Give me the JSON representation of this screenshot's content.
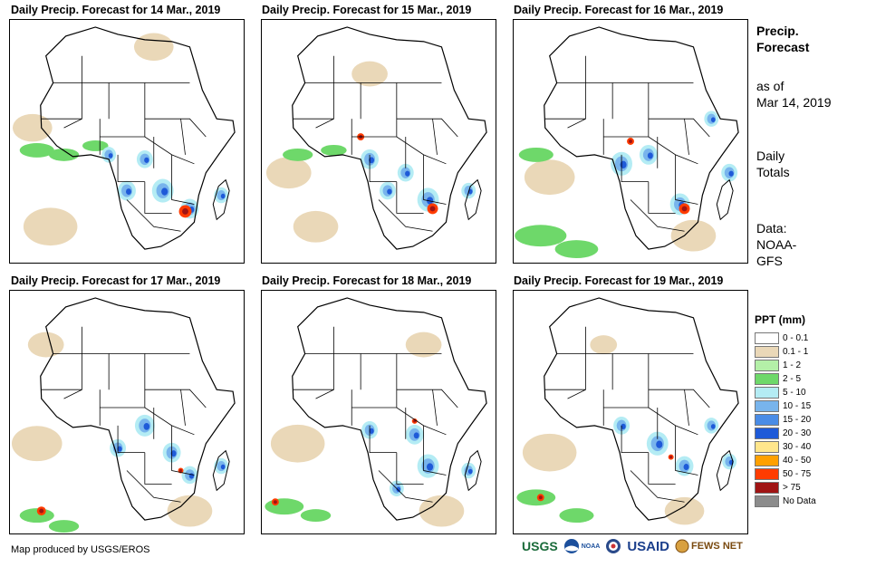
{
  "panels": [
    {
      "title": "Daily Precip. Forecast for 14 Mar., 2019"
    },
    {
      "title": "Daily Precip. Forecast for 15 Mar., 2019"
    },
    {
      "title": "Daily Precip. Forecast for 16 Mar., 2019"
    },
    {
      "title": "Daily Precip. Forecast for 17 Mar., 2019"
    },
    {
      "title": "Daily Precip. Forecast for 18 Mar., 2019"
    },
    {
      "title": "Daily Precip. Forecast for 19 Mar., 2019"
    }
  ],
  "side": {
    "heading1": "Precip.",
    "heading2": "Forecast",
    "asof1": "as of",
    "asof2": "Mar 14, 2019",
    "totals1": "Daily",
    "totals2": "Totals",
    "data1": "Data:",
    "data2": "NOAA-",
    "data3": "GFS"
  },
  "legend": {
    "title": "PPT (mm)",
    "items": [
      {
        "label": "0 - 0.1",
        "color": "#ffffff"
      },
      {
        "label": "0.1 - 1",
        "color": "#ead8b8"
      },
      {
        "label": "1 - 2",
        "color": "#b4f0a8"
      },
      {
        "label": "2 - 5",
        "color": "#6ed86a"
      },
      {
        "label": "5 - 10",
        "color": "#b4ecf4"
      },
      {
        "label": "10 - 15",
        "color": "#78b4ec"
      },
      {
        "label": "15 - 20",
        "color": "#4a8ce6"
      },
      {
        "label": "20 - 30",
        "color": "#1e5ad8"
      },
      {
        "label": "30 - 40",
        "color": "#ffe68c"
      },
      {
        "label": "40 - 50",
        "color": "#ffa000"
      },
      {
        "label": "50 - 75",
        "color": "#ff3c00"
      },
      {
        "label": "> 75",
        "color": "#a01414"
      },
      {
        "label": "No Data",
        "color": "#8c8c8c"
      }
    ]
  },
  "footer": {
    "credit": "Map produced by USGS/EROS",
    "logo_usgs": "USGS",
    "logo_noaa": "NOAA",
    "logo_usaid": "USAID",
    "logo_fews": "FEWS NET"
  }
}
